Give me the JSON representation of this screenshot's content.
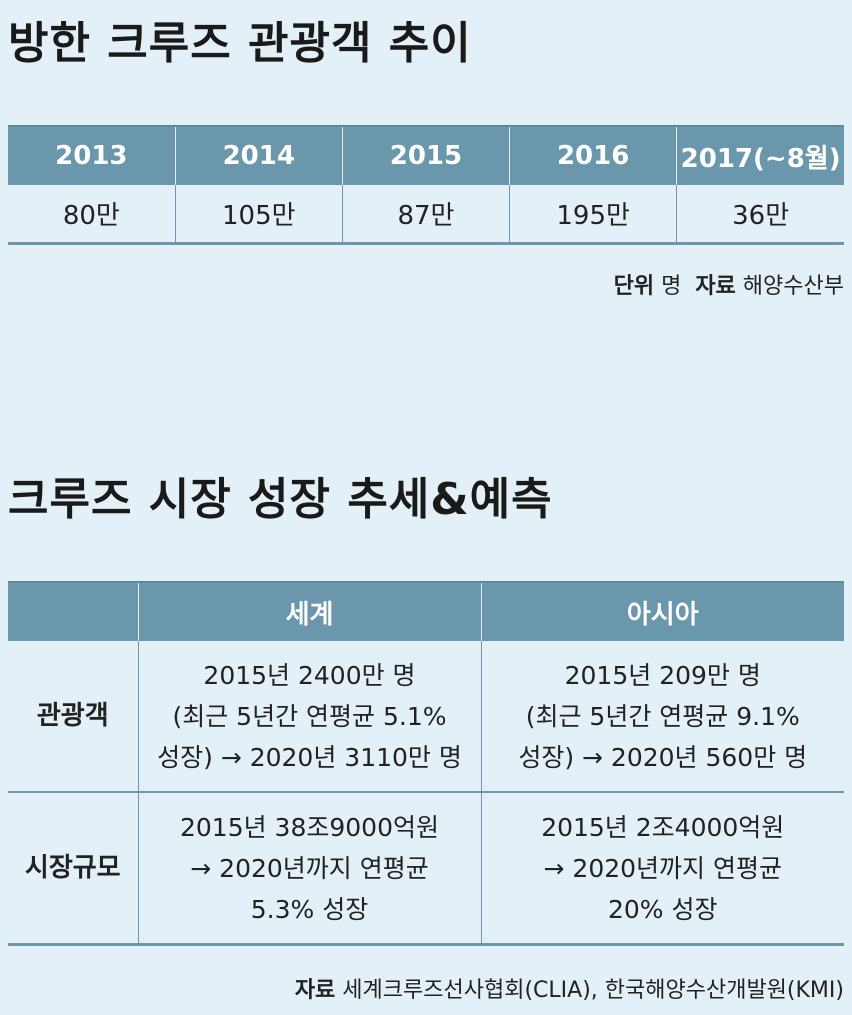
{
  "section1": {
    "title": "방한 크루즈 관광객 추이",
    "years": [
      "2013",
      "2014",
      "2015",
      "2016",
      "2017(~8월)"
    ],
    "values": [
      "80만",
      "105만",
      "87만",
      "195만",
      "36만"
    ],
    "unit_label": "단위",
    "unit_value": "명",
    "source_label": "자료",
    "source_value": "해양수산부"
  },
  "section2": {
    "title": "크루즈 시장 성장 추세&예측",
    "headers": [
      "",
      "세계",
      "아시아"
    ],
    "rows": [
      {
        "label": "관광객",
        "world": [
          "2015년 2400만 명",
          "(최근 5년간 연평균 5.1%",
          "성장) → 2020년 3110만 명"
        ],
        "asia": [
          "2015년 209만 명",
          "(최근 5년간 연평균 9.1%",
          "성장) → 2020년 560만 명"
        ]
      },
      {
        "label": "시장규모",
        "world": [
          "2015년 38조9000억원",
          "→ 2020년까지 연평균",
          "5.3% 성장"
        ],
        "asia": [
          "2015년 2조4000억원",
          "→ 2020년까지 연평균",
          "20% 성장"
        ]
      }
    ],
    "source_label": "자료",
    "source_value": "세계크루즈선사협회(CLIA), 한국해양수산개발원(KMI)"
  }
}
